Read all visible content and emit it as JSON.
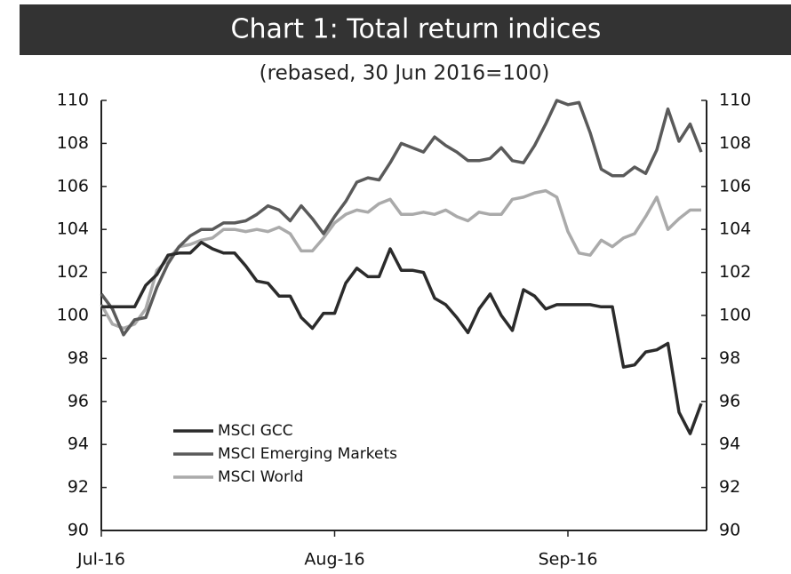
{
  "chart_data": {
    "type": "line",
    "title": "Chart 1: Total return indices",
    "subtitle": "(rebased, 30 Jun  2016=100)",
    "categories": [
      "Jul-16",
      null,
      null,
      null,
      null,
      null,
      null,
      null,
      null,
      null,
      null,
      null,
      null,
      null,
      null,
      null,
      null,
      null,
      null,
      null,
      null,
      "Aug-16",
      null,
      null,
      null,
      null,
      null,
      null,
      null,
      null,
      null,
      null,
      null,
      null,
      null,
      null,
      null,
      null,
      null,
      null,
      null,
      null,
      "Sep-16",
      null,
      null,
      null,
      null,
      null,
      null,
      null,
      null,
      null,
      null,
      null,
      null
    ],
    "series": [
      {
        "name": "MSCI GCC",
        "color": "#2b2b2b",
        "values": [
          100.4,
          100.4,
          100.4,
          100.4,
          101.4,
          101.9,
          102.8,
          102.9,
          102.9,
          103.4,
          103.1,
          102.9,
          102.9,
          102.3,
          101.6,
          101.5,
          100.9,
          100.9,
          99.9,
          99.4,
          100.1,
          100.1,
          101.5,
          102.2,
          101.8,
          101.8,
          103.1,
          102.1,
          102.1,
          102.0,
          100.8,
          100.5,
          99.9,
          99.2,
          100.3,
          101.0,
          100.0,
          99.3,
          101.2,
          100.9,
          100.3,
          100.5,
          100.5,
          100.5,
          100.5,
          100.4,
          100.4,
          97.6,
          97.7,
          98.3,
          98.4,
          98.7,
          95.5,
          94.5,
          95.9
        ]
      },
      {
        "name": "MSCI Emerging Markets",
        "color": "#5a5a5a",
        "values": [
          101.0,
          100.3,
          99.1,
          99.8,
          99.9,
          101.3,
          102.4,
          103.2,
          103.7,
          104.0,
          104.0,
          104.3,
          104.3,
          104.4,
          104.7,
          105.1,
          104.9,
          104.4,
          105.1,
          104.5,
          103.8,
          104.6,
          105.3,
          106.2,
          106.4,
          106.3,
          107.1,
          108.0,
          107.8,
          107.6,
          108.3,
          107.9,
          107.6,
          107.2,
          107.2,
          107.3,
          107.8,
          107.2,
          107.1,
          107.9,
          108.9,
          110.0,
          109.8,
          109.9,
          108.5,
          106.8,
          106.5,
          106.5,
          106.9,
          106.6,
          107.7,
          109.6,
          108.1,
          108.9,
          107.6
        ]
      },
      {
        "name": "MSCI World",
        "color": "#aaaaaa",
        "values": [
          100.5,
          99.6,
          99.4,
          99.6,
          100.3,
          102.1,
          102.6,
          103.2,
          103.3,
          103.5,
          103.6,
          104.0,
          104.0,
          103.9,
          104.0,
          103.9,
          104.1,
          103.8,
          103.0,
          103.0,
          103.6,
          104.3,
          104.7,
          104.9,
          104.8,
          105.2,
          105.4,
          104.7,
          104.7,
          104.8,
          104.7,
          104.9,
          104.6,
          104.4,
          104.8,
          104.7,
          104.7,
          105.4,
          105.5,
          105.7,
          105.8,
          105.5,
          103.9,
          102.9,
          102.8,
          103.5,
          103.2,
          103.6,
          103.8,
          104.6,
          105.5,
          104.0,
          104.5,
          104.9,
          104.9
        ]
      }
    ],
    "ylim": [
      90,
      110
    ],
    "yticks": [
      90,
      92,
      94,
      96,
      98,
      100,
      102,
      104,
      106,
      108,
      110
    ],
    "y2lim": [
      90,
      110
    ],
    "y2ticks": [
      90,
      92,
      94,
      96,
      98,
      100,
      102,
      104,
      106,
      108,
      110
    ],
    "grid": false,
    "legend": "lower-left"
  }
}
